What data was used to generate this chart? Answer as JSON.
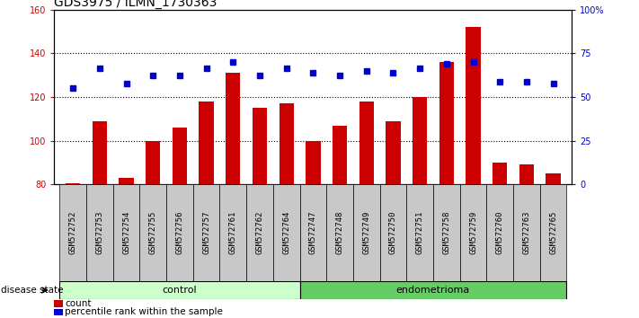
{
  "title": "GDS3975 / ILMN_1730363",
  "samples": [
    "GSM572752",
    "GSM572753",
    "GSM572754",
    "GSM572755",
    "GSM572756",
    "GSM572757",
    "GSM572761",
    "GSM572762",
    "GSM572764",
    "GSM572747",
    "GSM572748",
    "GSM572749",
    "GSM572750",
    "GSM572751",
    "GSM572758",
    "GSM572759",
    "GSM572760",
    "GSM572763",
    "GSM572765"
  ],
  "count_values": [
    80.5,
    109,
    83,
    100,
    106,
    118,
    131,
    115,
    117,
    100,
    107,
    118,
    109,
    120,
    136,
    152,
    90,
    89,
    85
  ],
  "percentile_values": [
    124,
    133,
    126,
    130,
    130,
    133,
    136,
    130,
    133,
    131,
    130,
    132,
    131,
    133,
    135,
    136,
    127,
    127,
    126
  ],
  "ylim_left": [
    80,
    160
  ],
  "ylim_right": [
    0,
    100
  ],
  "yticks_left": [
    80,
    100,
    120,
    140,
    160
  ],
  "yticks_right": [
    0,
    25,
    50,
    75,
    100
  ],
  "ytick_labels_right": [
    "0",
    "25",
    "50",
    "75",
    "100%"
  ],
  "bar_color": "#CC0000",
  "dot_color": "#0000CC",
  "control_count": 9,
  "endometrioma_count": 10,
  "control_label": "control",
  "endometrioma_label": "endometrioma",
  "disease_state_label": "disease state",
  "legend_count_label": "count",
  "legend_percentile_label": "percentile rank within the sample",
  "control_bg": "#CCFFCC",
  "endometrioma_bg": "#66CC66",
  "xticklabel_bg": "#C8C8C8",
  "plot_bg": "#FFFFFF",
  "fig_bg": "#FFFFFF",
  "title_fontsize": 10,
  "tick_fontsize": 7,
  "sample_fontsize": 6.5
}
